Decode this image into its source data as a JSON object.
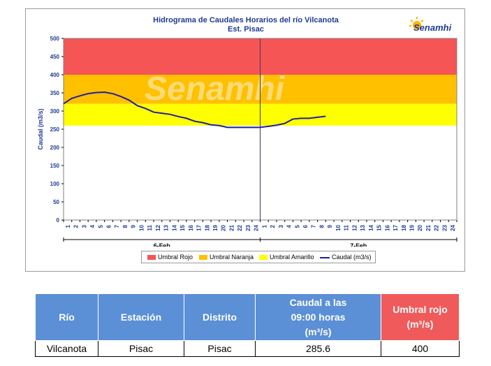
{
  "chart_data": {
    "type": "line",
    "title": "Hidrograma de Caudales Horarios del río Vilcanota",
    "subtitle": "Est. Pisac",
    "ylabel": "Caudal  (m3/s)",
    "ylim": [
      0,
      500
    ],
    "yticks": [
      "0",
      "50",
      "100",
      "150",
      "200",
      "250",
      "300",
      "350",
      "400",
      "450",
      "500"
    ],
    "xticks_day1": [
      "1",
      "2",
      "3",
      "4",
      "5",
      "6",
      "7",
      "8",
      "9",
      "10",
      "11",
      "12",
      "13",
      "14",
      "15",
      "16",
      "17",
      "18",
      "19",
      "20",
      "21",
      "22",
      "23",
      "24"
    ],
    "xticks_day2": [
      "1",
      "2",
      "3",
      "4",
      "5",
      "6",
      "7",
      "8",
      "9",
      "10",
      "11",
      "12",
      "13",
      "14",
      "15",
      "16",
      "17",
      "18",
      "19",
      "20",
      "21",
      "22",
      "23",
      "24"
    ],
    "day_labels": [
      "6-Feb",
      "7-Feb"
    ],
    "bands": [
      {
        "name": "Umbral Rojo",
        "from": 400,
        "to": 500,
        "color": "#f55555"
      },
      {
        "name": "Umbral Naranja",
        "from": 320,
        "to": 400,
        "color": "#ffc000"
      },
      {
        "name": "Umbral Amarillo",
        "from": 260,
        "to": 320,
        "color": "#ffff00"
      }
    ],
    "series": [
      {
        "name": "Caudal (m3/s)",
        "color": "#1f1fa0",
        "x": [
          0,
          1,
          2,
          3,
          4,
          5,
          6,
          7,
          8,
          9,
          10,
          11,
          12,
          13,
          14,
          15,
          16,
          17,
          18,
          19,
          20,
          21,
          22,
          23,
          24,
          25,
          26,
          27,
          28,
          29,
          30,
          31,
          32
        ],
        "values": [
          320,
          335,
          342,
          348,
          351,
          352,
          348,
          340,
          330,
          315,
          307,
          297,
          294,
          291,
          285,
          280,
          272,
          268,
          262,
          260,
          255,
          255,
          255,
          255,
          255,
          258,
          261,
          266,
          278,
          280,
          280,
          283,
          285.6
        ]
      }
    ],
    "legend": [
      "Umbral Rojo",
      "Umbral Naranja",
      "Umbral Amarillo",
      "Caudal (m3/s)"
    ],
    "watermark": "Senamhi"
  },
  "logo": {
    "text": "Senamhi"
  },
  "table": {
    "headers": [
      "Río",
      "Estación",
      "Distrito",
      "Caudal a las 09:00 horas (m³/s)",
      "Umbral rojo (m³/s)"
    ],
    "header_caudal_lines": [
      "Caudal a las",
      "09:00 horas",
      "(m³/s)"
    ],
    "header_umbral_lines": [
      "Umbral rojo",
      "(m³/s)"
    ],
    "row": [
      "Vilcanota",
      "Pisac",
      "Pisac",
      "285.6",
      "400"
    ]
  }
}
